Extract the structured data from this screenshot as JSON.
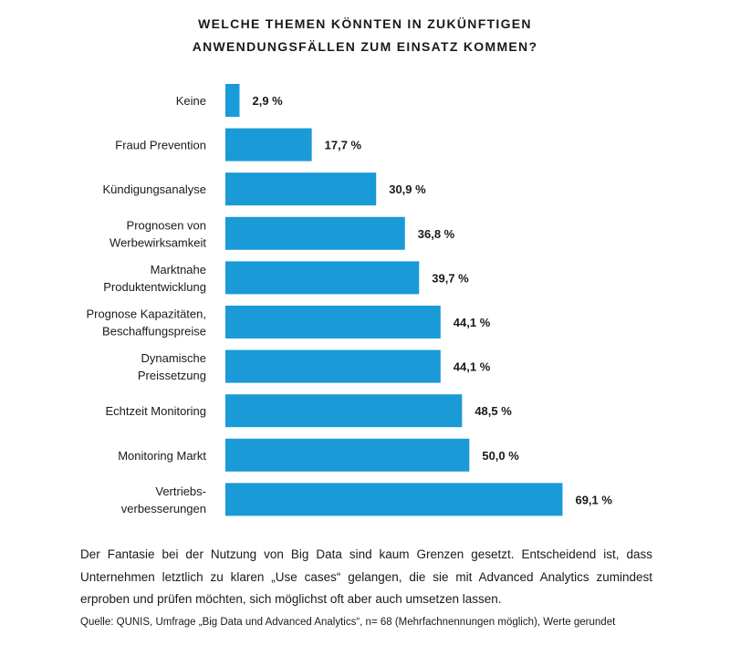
{
  "chart_data": {
    "type": "bar",
    "orientation": "horizontal",
    "title": [
      "WELCHE THEMEN KÖNNTEN IN ZUKÜNFTIGEN",
      "ANWENDUNGSFÄLLEN ZUM EINSATZ KOMMEN?"
    ],
    "categories": [
      [
        "Keine"
      ],
      [
        "Fraud Prevention"
      ],
      [
        "Kündigungsanalyse"
      ],
      [
        "Prognosen von",
        "Werbewirksamkeit"
      ],
      [
        "Marktnahe",
        "Produktentwicklung"
      ],
      [
        "Prognose Kapazitäten,",
        "Beschaffungspreise"
      ],
      [
        "Dynamische",
        "Preissetzung"
      ],
      [
        "Echtzeit Monitoring"
      ],
      [
        "Monitoring Markt"
      ],
      [
        "Vertriebs-",
        "verbesserungen"
      ]
    ],
    "values": [
      2.9,
      17.7,
      30.9,
      36.8,
      39.7,
      44.1,
      44.1,
      48.5,
      50.0,
      69.1
    ],
    "value_labels": [
      "2,9 %",
      "17,7 %",
      "30,9 %",
      "36,8 %",
      "39,7 %",
      "44,1 %",
      "44,1 %",
      "48,5 %",
      "50,0 %",
      "69,1 %"
    ],
    "unit": "%",
    "xlim": [
      0,
      100
    ],
    "grid": false,
    "legend": "none",
    "bar_color": "#1a9ad6"
  },
  "text": {
    "description": "Der Fantasie bei der Nutzung von Big Data sind kaum Grenzen gesetzt. Entscheidend ist, dass Unternehmen letztlich zu klaren „Use cases“ gelangen, die sie mit Advanced Analytics zumindest erproben und prüfen möchten, sich möglichst oft aber auch umsetzen lassen.",
    "source": "Quelle: QUNIS, Umfrage „Big Data und Advanced Analytics“, n= 68 (Mehrfachnennungen möglich), Werte gerundet"
  }
}
